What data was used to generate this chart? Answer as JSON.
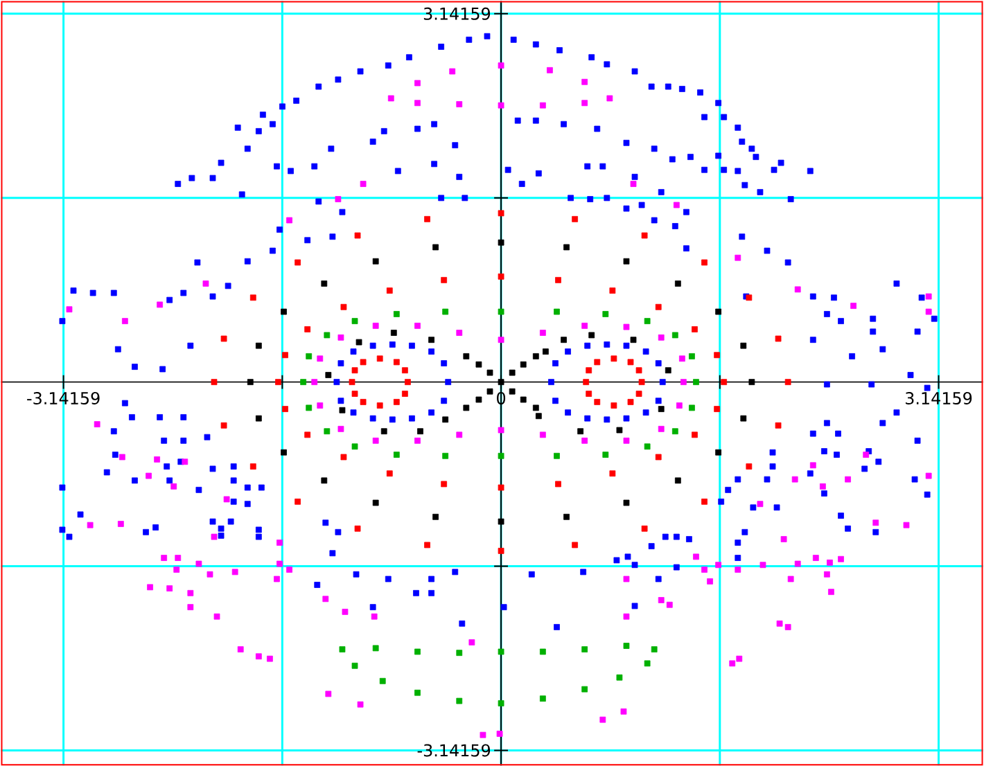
{
  "chart_data": {
    "type": "scatter",
    "xlim": [
      -3.59,
      3.46
    ],
    "ylim": [
      -3.27,
      3.25
    ],
    "xticks": [
      {
        "value": -3.14159,
        "label": "-3.14159"
      },
      {
        "value": -1.5708,
        "label": null
      },
      {
        "value": 0,
        "label": "0"
      },
      {
        "value": 1.5708,
        "label": null
      },
      {
        "value": 3.14159,
        "label": "3.14159"
      }
    ],
    "yticks": [
      {
        "value": -3.14159,
        "label": "-3.14159"
      },
      {
        "value": -1.5708,
        "label": null
      },
      {
        "value": 1.5708,
        "label": null
      },
      {
        "value": 3.14159,
        "label": "3.14159"
      }
    ],
    "grid": true,
    "marker": "square",
    "series": [
      {
        "color": "#0000ff",
        "x": [
          -0.1,
          -0.23,
          -0.43,
          -0.66,
          -0.81,
          -1.01,
          -1.17,
          -1.31,
          -1.47,
          -1.57,
          -1.71,
          -1.64,
          -1.89,
          -1.74,
          -1.82,
          -2.01,
          -1.61,
          -2.07,
          -2.22,
          -2.32,
          -1.86,
          -1.51,
          -1.34,
          -1.22,
          -0.92,
          -0.84,
          -0.6,
          -0.48,
          -0.33,
          -0.74,
          -0.48,
          -0.3,
          -0.43,
          -0.26,
          -1.31,
          -1.14,
          -1.59,
          -1.39,
          -1.21,
          -1.64,
          -1.82,
          -2.18,
          -1.96,
          -2.07,
          -2.28,
          -2.38,
          -2.78,
          -2.93,
          -3.07,
          -3.15,
          -2.23,
          -2.75,
          -2.63,
          -2.43,
          0.09,
          0.25,
          0.42,
          0.65,
          0.76,
          0.96,
          1.08,
          1.2,
          1.3,
          1.43,
          1.56,
          1.6,
          1.7,
          1.73,
          1.8,
          1.83,
          1.56,
          1.6,
          1.46,
          1.7,
          1.96,
          2.01,
          2.22,
          1.75,
          1.86,
          2.08,
          1.46,
          0.12,
          0.25,
          0.45,
          0.69,
          0.9,
          1.1,
          1.23,
          1.36,
          0.73,
          0.62,
          0.96,
          0.27,
          0.15,
          0.05,
          0.5,
          0.64,
          0.76,
          1.15,
          0.9,
          1.01,
          1.1,
          1.25,
          1.33,
          1.33,
          1.73,
          1.91,
          2.06,
          1.76,
          2.24,
          2.39,
          2.34,
          2.44,
          2.67,
          2.67,
          2.84,
          2.99,
          3.02,
          3.11,
          2.24,
          2.52,
          2.74,
          2.94,
          -2.7,
          -2.78,
          -2.65,
          -2.45,
          -2.28,
          -2.42,
          -2.28,
          -2.11,
          -2.77,
          -2.4,
          -2.3,
          -2.83,
          -2.63,
          -2.38,
          -3.15,
          -2.07,
          -1.92,
          -1.92,
          -2.17,
          -1.82,
          -1.72,
          -1.92,
          -1.82,
          -3.02,
          -3.15,
          -3.1,
          -2.55,
          -2.48,
          -2.07,
          -1.94,
          -2.01,
          -2.01,
          -1.74,
          -1.74,
          -1.26,
          -1.17,
          -1.21,
          -1.32,
          -1.04,
          -0.81,
          -0.92,
          -0.61,
          -0.5,
          -0.5,
          -0.33,
          -0.28,
          2.34,
          2.66,
          3.06,
          2.34,
          2.84,
          2.74,
          2.24,
          2.42,
          2.99,
          2.32,
          2.41,
          1.95,
          2.64,
          2.71,
          2.61,
          1.95,
          2.22,
          1.91,
          2.32,
          2.97,
          3.06,
          1.7,
          1.63,
          1.58,
          1.81,
          1.98,
          2.44,
          2.49,
          2.69,
          1.75,
          1.7,
          1.7,
          1.26,
          1.35,
          1.18,
          1.08,
          0.83,
          0.91,
          0.96,
          1.26,
          1.13,
          0.59,
          0.22,
          0.02,
          0.96,
          0.4
        ],
        "values": [
          2.95,
          2.92,
          2.86,
          2.77,
          2.7,
          2.65,
          2.58,
          2.52,
          2.4,
          2.35,
          2.28,
          2.2,
          2.17,
          2.14,
          1.99,
          1.87,
          1.84,
          1.74,
          1.74,
          1.69,
          1.6,
          1.8,
          1.84,
          1.99,
          2.05,
          2.14,
          2.16,
          2.2,
          2.02,
          1.8,
          1.86,
          1.75,
          1.57,
          1.57,
          1.54,
          1.45,
          1.3,
          1.21,
          1.24,
          1.12,
          1.03,
          1.02,
          0.82,
          0.73,
          0.76,
          0.7,
          0.76,
          0.76,
          0.78,
          0.52,
          0.31,
          0.28,
          0.13,
          0.11,
          2.92,
          2.88,
          2.83,
          2.77,
          2.71,
          2.65,
          2.52,
          2.52,
          2.5,
          2.47,
          2.38,
          2.26,
          2.17,
          2.05,
          1.99,
          1.92,
          1.93,
          1.81,
          1.81,
          1.8,
          1.81,
          1.87,
          1.8,
          1.68,
          1.62,
          1.56,
          2.26,
          2.23,
          2.23,
          2.2,
          2.16,
          2.04,
          1.99,
          1.9,
          1.92,
          1.84,
          1.84,
          1.75,
          1.78,
          1.69,
          1.81,
          1.57,
          1.56,
          1.57,
          1.62,
          1.48,
          1.51,
          1.38,
          1.33,
          1.45,
          1.14,
          1.24,
          1.12,
          1.02,
          0.73,
          0.73,
          0.72,
          0.58,
          0.52,
          0.54,
          0.43,
          0.84,
          0.43,
          0.72,
          0.54,
          0.36,
          0.22,
          0.28,
          0.06,
          -0.18,
          -0.42,
          -0.3,
          -0.3,
          -0.3,
          -0.5,
          -0.5,
          -0.47,
          -0.62,
          -0.72,
          -0.68,
          -0.77,
          -0.84,
          -0.84,
          -0.9,
          -0.74,
          -0.72,
          -0.84,
          -0.92,
          -0.9,
          -0.9,
          -1.02,
          -1.04,
          -1.13,
          -1.26,
          -1.32,
          -1.28,
          -1.24,
          -1.19,
          -1.19,
          -1.25,
          -1.31,
          -1.26,
          -1.32,
          -1.2,
          -1.28,
          -1.46,
          -1.73,
          -1.64,
          -1.68,
          -1.92,
          -1.8,
          -1.68,
          -1.8,
          -1.62,
          -2.06,
          -0.02,
          -0.02,
          -0.05,
          -0.35,
          -0.26,
          -0.35,
          -0.44,
          -0.44,
          -0.5,
          -0.59,
          -0.62,
          -0.6,
          -0.59,
          -0.68,
          -0.74,
          -0.72,
          -0.78,
          -0.83,
          -0.95,
          -0.83,
          -0.96,
          -0.83,
          -0.92,
          -1.02,
          -1.07,
          -1.07,
          -1.14,
          -1.25,
          -1.28,
          -1.28,
          -1.37,
          -1.5,
          -1.32,
          -1.34,
          -1.32,
          -1.4,
          -1.52,
          -1.49,
          -1.56,
          -1.58,
          -1.68,
          -1.62,
          -1.64,
          -1.92,
          -1.91,
          -2.09
        ]
      },
      {
        "color": "#ff00ff",
        "x": [
          -0.99,
          -1.17,
          -1.52,
          -2.12,
          -2.45,
          -2.7,
          -3.1,
          0.95,
          1.26,
          1.7,
          2.13,
          2.53,
          3.07,
          3.07,
          -2.9,
          -2.72,
          -2.47,
          -2.27,
          -2.53,
          -2.35,
          -1.97,
          -2.95,
          -2.73,
          -2.06,
          -1.59,
          -2.42,
          -2.32,
          -2.17,
          -2.33,
          -1.59,
          -1.52,
          -1.61,
          -2.09,
          -1.91,
          -2.52,
          -2.38,
          -2.23,
          -2.23,
          -2.04,
          -1.26,
          -1.12,
          -0.91,
          -0.21,
          -1.87,
          -1.74,
          -1.66,
          -1.24,
          -1.01,
          -0.13,
          -0.01,
          2.11,
          2.24,
          2.31,
          2.49,
          2.62,
          3.07,
          1.86,
          2.03,
          2.69,
          2.91,
          1.4,
          1.46,
          1.56,
          1.7,
          1.88,
          2.13,
          2.26,
          2.36,
          2.44,
          2.34,
          2.08,
          2.37,
          1.5,
          0.9,
          1.15,
          1.21,
          0.9,
          2.0,
          2.06,
          1.66,
          1.71,
          0.88,
          0.73
        ],
        "values": [
          1.69,
          1.56,
          1.38,
          0.84,
          0.66,
          0.52,
          0.62,
          1.69,
          1.51,
          1.06,
          0.79,
          0.65,
          0.73,
          0.6,
          -0.36,
          -0.64,
          -0.66,
          -0.68,
          -0.8,
          -0.89,
          -1.0,
          -1.22,
          -1.21,
          -1.32,
          -1.37,
          -1.5,
          -1.5,
          -1.55,
          -1.6,
          -1.55,
          -1.6,
          -1.68,
          -1.64,
          -1.62,
          -1.75,
          -1.76,
          -1.8,
          -1.92,
          -2.0,
          -1.85,
          -1.96,
          -2.0,
          -2.22,
          -2.28,
          -2.34,
          -2.36,
          -2.66,
          -2.75,
          -3.01,
          -3.0,
          -0.83,
          -0.71,
          -0.89,
          -0.83,
          -0.62,
          -0.8,
          -1.04,
          -1.34,
          -1.2,
          -1.22,
          -1.49,
          -1.6,
          -1.56,
          -1.6,
          -1.56,
          -1.55,
          -1.5,
          -1.54,
          -1.51,
          -1.64,
          -1.68,
          -1.79,
          -1.7,
          -1.68,
          -1.86,
          -1.9,
          -2.0,
          -2.06,
          -2.09,
          -2.4,
          -2.36,
          -2.81,
          -2.88
        ]
      },
      {
        "color": "#ff0000",
        "x": [
          2.06,
          1.99,
          1.78,
          1.46,
          1.03,
          0.53,
          0,
          -0.53,
          -1.03,
          -1.46,
          -1.78,
          -1.99,
          -2.06,
          -1.99,
          -1.78,
          -1.46,
          -1.03,
          -0.53,
          0,
          0.53,
          1.03,
          1.46,
          1.78,
          1.99,
          1.6,
          1.55,
          1.39,
          1.13,
          0.8,
          0.41,
          0,
          -0.41,
          -0.8,
          -1.13,
          -1.39,
          -1.55,
          -1.6,
          -1.55,
          -1.39,
          -1.13,
          -0.8,
          -0.41,
          0,
          0.41,
          0.8,
          1.13,
          1.39,
          1.55
        ],
        "values": [
          0,
          0.37,
          0.72,
          1.02,
          1.25,
          1.39,
          1.44,
          1.39,
          1.25,
          1.02,
          0.72,
          0.37,
          0,
          -0.37,
          -0.72,
          -1.02,
          -1.25,
          -1.39,
          -1.44,
          -1.39,
          -1.25,
          -1.02,
          -0.72,
          -0.37,
          0,
          0.23,
          0.45,
          0.64,
          0.78,
          0.87,
          0.9,
          0.87,
          0.78,
          0.64,
          0.45,
          0.23,
          0,
          -0.23,
          -0.45,
          -0.64,
          -0.78,
          -0.87,
          -0.9,
          -0.87,
          -0.78,
          -0.64,
          -0.45,
          -0.23
        ]
      },
      {
        "color": "#000000",
        "x": [
          1.8,
          1.74,
          1.56,
          1.27,
          0.9,
          0.47,
          0,
          -0.47,
          -0.9,
          -1.27,
          -1.56,
          -1.74,
          -1.8,
          -1.74,
          -1.56,
          -1.27,
          -0.9,
          -0.47,
          0,
          0.47,
          0.9,
          1.27,
          1.56,
          1.74,
          0,
          0.08,
          0.16,
          0.25,
          -0.08,
          -0.16,
          -0.25,
          0.08,
          0.16,
          0.25,
          -0.08,
          -0.16,
          -0.25,
          -0.5,
          -0.77,
          -1.02,
          0.32,
          0.45,
          0.65,
          0.95,
          1.2,
          1.15,
          0.85,
          0.57,
          0.27,
          -0.4,
          -0.58,
          -0.84,
          -1.14,
          -1.24
        ],
        "values": [
          0,
          0.31,
          0.6,
          0.84,
          1.03,
          1.15,
          1.19,
          1.15,
          1.03,
          0.84,
          0.6,
          0.31,
          0,
          -0.31,
          -0.6,
          -0.84,
          -1.03,
          -1.15,
          -1.19,
          -1.15,
          -1.03,
          -0.84,
          -0.6,
          -0.31,
          0,
          0.08,
          0.15,
          0.22,
          0.08,
          0.15,
          0.22,
          -0.08,
          -0.15,
          -0.22,
          -0.08,
          -0.15,
          -0.22,
          0.36,
          0.42,
          0.34,
          0.26,
          0.36,
          0.4,
          0.36,
          0.1,
          -0.23,
          -0.41,
          -0.42,
          -0.29,
          -0.32,
          -0.42,
          -0.42,
          -0.24,
          0.06
        ]
      },
      {
        "color": "#00b000",
        "x": [
          -1.42,
          -1.38,
          -1.25,
          -1.05,
          -0.75,
          -0.4,
          0,
          0.4,
          0.75,
          1.05,
          1.25,
          1.37,
          1.4,
          1.37,
          1.25,
          1.05,
          0.75,
          0.4,
          0,
          -0.4,
          -0.75,
          -1.05,
          -1.25,
          -1.38,
          -1.14,
          -0.9,
          -0.6,
          -0.3,
          0,
          0.3,
          0.6,
          0.9,
          1.1,
          1.05,
          0.85,
          0.6,
          0.3,
          0,
          -0.3,
          -0.6,
          -0.85,
          -1.05
        ],
        "values": [
          0,
          0.22,
          0.4,
          0.52,
          0.58,
          0.6,
          0.6,
          0.6,
          0.58,
          0.52,
          0.4,
          0.22,
          0,
          -0.22,
          -0.42,
          -0.55,
          -0.62,
          -0.63,
          -0.63,
          -0.63,
          -0.62,
          -0.55,
          -0.42,
          -0.22,
          -2.28,
          -2.27,
          -2.3,
          -2.31,
          -2.3,
          -2.3,
          -2.28,
          -2.25,
          -2.28,
          -2.4,
          -2.52,
          -2.62,
          -2.7,
          -2.74,
          -2.72,
          -2.65,
          -2.55,
          -2.42
        ]
      },
      {
        "color": "#ff00ff",
        "x": [
          -0.79,
          -0.6,
          -0.35,
          0,
          0.35,
          0.6,
          0.78,
          0.6,
          0.3,
          0,
          -0.3,
          -0.6,
          -1.34,
          -1.3,
          -1.15,
          -0.9,
          -0.6,
          -0.3,
          0,
          0.3,
          0.6,
          0.9,
          1.15,
          1.3,
          1.31,
          1.28,
          1.15,
          0.9,
          0.6,
          0.3,
          0,
          -0.3,
          -0.6,
          -0.9,
          -1.15,
          -1.3
        ],
        "values": [
          2.42,
          2.55,
          2.65,
          2.7,
          2.66,
          2.56,
          2.42,
          2.38,
          2.36,
          2.36,
          2.37,
          2.38,
          0,
          0.2,
          0.38,
          0.48,
          0.48,
          0.42,
          0.36,
          0.42,
          0.48,
          0.47,
          0.38,
          0.2,
          0,
          -0.2,
          -0.4,
          -0.5,
          -0.5,
          -0.45,
          -0.41,
          -0.45,
          -0.5,
          -0.5,
          -0.4,
          -0.2
        ]
      },
      {
        "color": "#0000ff",
        "x": [
          0.36,
          0.39,
          0.48,
          0.62,
          0.76,
          0.9,
          1.04,
          1.13,
          1.16,
          1.13,
          1.04,
          0.9,
          0.76,
          0.62,
          0.48,
          0.39,
          -0.38,
          -0.41,
          -0.5,
          -0.64,
          -0.78,
          -0.92,
          -1.06,
          -1.15,
          -1.18,
          -1.15,
          -1.06,
          -0.92,
          -0.78,
          -0.64,
          -0.5,
          -0.41
        ],
        "values": [
          0,
          0.16,
          0.26,
          0.31,
          0.32,
          0.31,
          0.26,
          0.16,
          0,
          -0.16,
          -0.26,
          -0.31,
          -0.32,
          -0.31,
          -0.26,
          -0.16,
          0,
          0.16,
          0.26,
          0.31,
          0.32,
          0.31,
          0.26,
          0.16,
          0,
          -0.16,
          -0.26,
          -0.31,
          -0.32,
          -0.31,
          -0.26,
          -0.16
        ]
      },
      {
        "color": "#ff0000",
        "x": [
          0.61,
          0.63,
          0.69,
          0.81,
          0.93,
          0.99,
          1.01,
          0.99,
          0.93,
          0.81,
          0.69,
          0.63,
          -1.07,
          -1.05,
          -0.99,
          -0.87,
          -0.75,
          -0.69,
          -0.67,
          -0.69,
          -0.75,
          -0.87,
          -0.99,
          -1.05
        ],
        "values": [
          0,
          0.1,
          0.17,
          0.2,
          0.17,
          0.1,
          0,
          -0.1,
          -0.17,
          -0.2,
          -0.17,
          -0.1,
          0,
          0.1,
          0.17,
          0.2,
          0.17,
          0.1,
          0,
          -0.1,
          -0.17,
          -0.2,
          -0.17,
          -0.1
        ]
      }
    ]
  }
}
